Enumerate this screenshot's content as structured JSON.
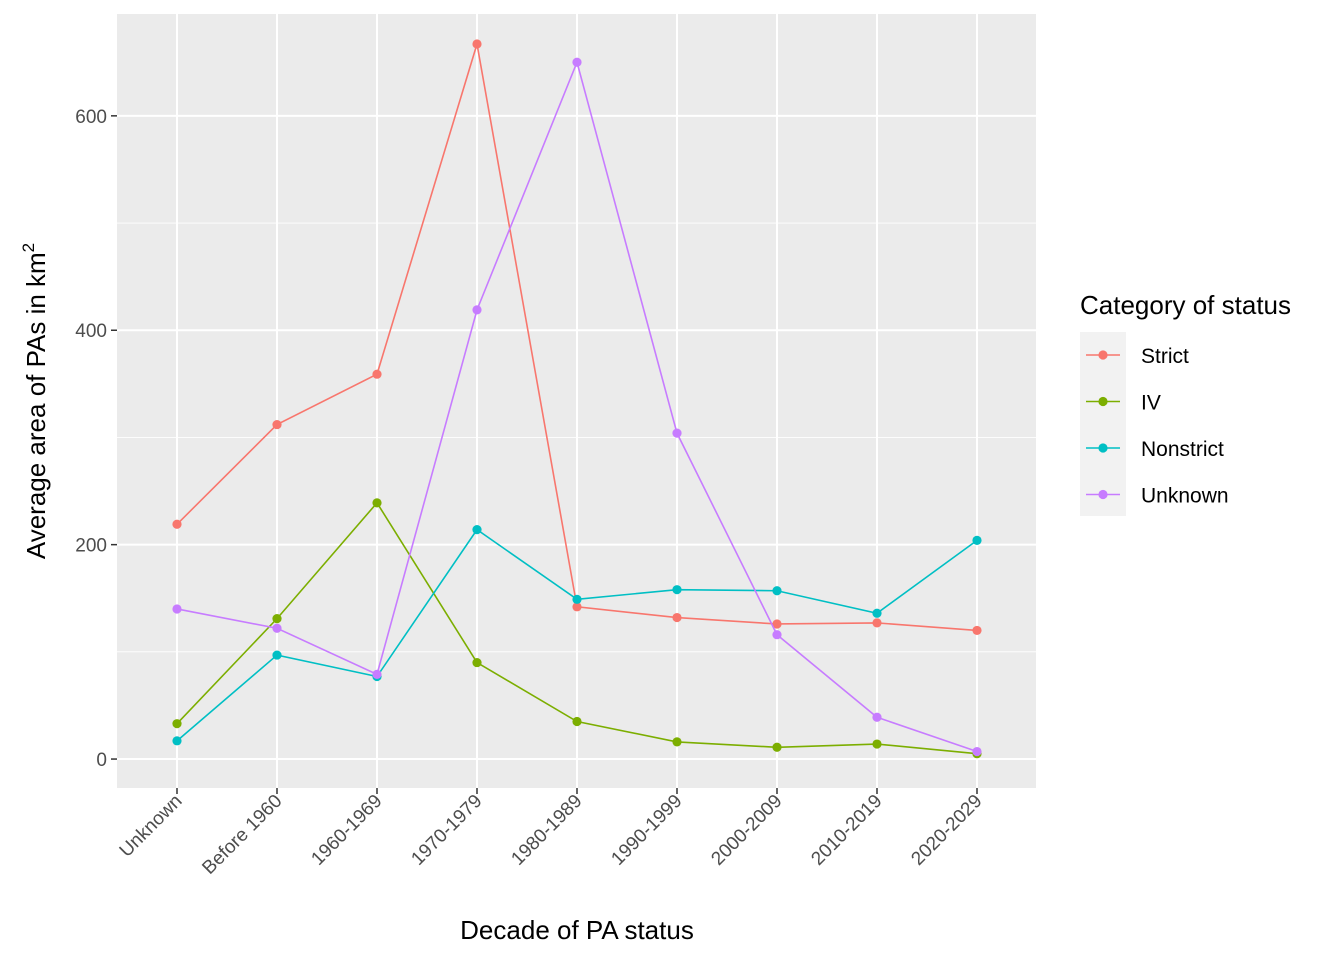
{
  "chart_data": {
    "type": "line",
    "xlabel": "Decade of PA status",
    "ylabel": "Average area of PAs in km",
    "ylabel_superscript": "2",
    "categories": [
      "Unknown",
      "Before 1960",
      "1960-1969",
      "1970-1979",
      "1980-1989",
      "1990-1999",
      "2000-2009",
      "2010-2019",
      "2020-2029"
    ],
    "ylim": [
      -27,
      695
    ],
    "yticks": [
      0,
      200,
      400,
      600
    ],
    "ytick_labels": [
      "0",
      "200",
      "400",
      "600"
    ],
    "grid": true,
    "background": "#ebebeb",
    "legend": {
      "title": "Category of status",
      "placement": "right"
    },
    "series": [
      {
        "name": "Strict",
        "color": "#f8766d",
        "values": [
          219,
          312,
          359,
          667,
          142,
          132,
          126,
          127,
          120
        ]
      },
      {
        "name": "IV",
        "color": "#7cae00",
        "values": [
          33,
          131,
          239,
          90,
          35,
          16,
          11,
          14,
          5
        ]
      },
      {
        "name": "Nonstrict",
        "color": "#00bfc4",
        "values": [
          17,
          97,
          77,
          214,
          149,
          158,
          157,
          136,
          204
        ]
      },
      {
        "name": "Unknown",
        "color": "#c77cff",
        "values": [
          140,
          122,
          79,
          419,
          650,
          304,
          116,
          39,
          7
        ]
      }
    ]
  }
}
